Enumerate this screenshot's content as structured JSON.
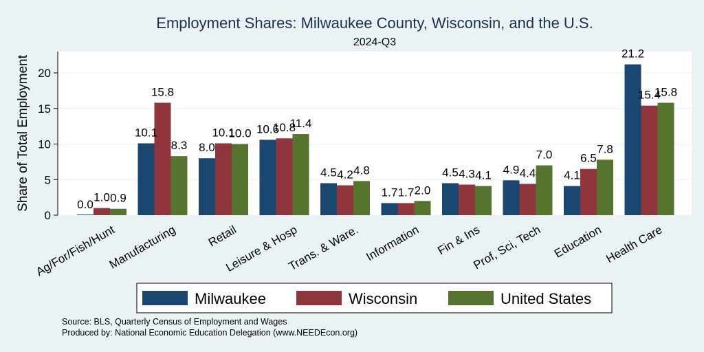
{
  "chart_data": {
    "type": "bar",
    "title": "Employment Shares: Milwaukee County, Wisconsin, and the U.S.",
    "subtitle": "2024-Q3",
    "xlabel": "",
    "ylabel": "Share of Total Employment",
    "ylim": [
      0,
      23
    ],
    "yticks": [
      0,
      5,
      10,
      15,
      20
    ],
    "grid": true,
    "legend_position": "bottom",
    "categories": [
      "Ag/For/Fish/Hunt",
      "Manufacturing",
      "Retail",
      "Leisure & Hosp",
      "Trans. & Ware.",
      "Information",
      "Fin & Ins",
      "Prof, Sci, Tech",
      "Education",
      "Health Care"
    ],
    "series": [
      {
        "name": "Milwaukee",
        "color": "#1a476f",
        "values": [
          0.0,
          10.1,
          8.0,
          10.6,
          4.5,
          1.7,
          4.5,
          4.9,
          4.1,
          21.2
        ]
      },
      {
        "name": "Wisconsin",
        "color": "#90353b",
        "values": [
          1.0,
          15.8,
          10.1,
          10.8,
          4.2,
          1.7,
          4.3,
          4.4,
          6.5,
          15.4
        ]
      },
      {
        "name": "United States",
        "color": "#55752f",
        "values": [
          0.9,
          8.3,
          10.0,
          11.4,
          4.8,
          2.0,
          4.1,
          7.0,
          7.8,
          15.8
        ]
      }
    ]
  },
  "notes": {
    "source": "Source: BLS, Quarterly Census of Employment and Wages",
    "produced_by": "Produced by: National Economic Education Delegation (www.NEEDEcon.org)"
  }
}
